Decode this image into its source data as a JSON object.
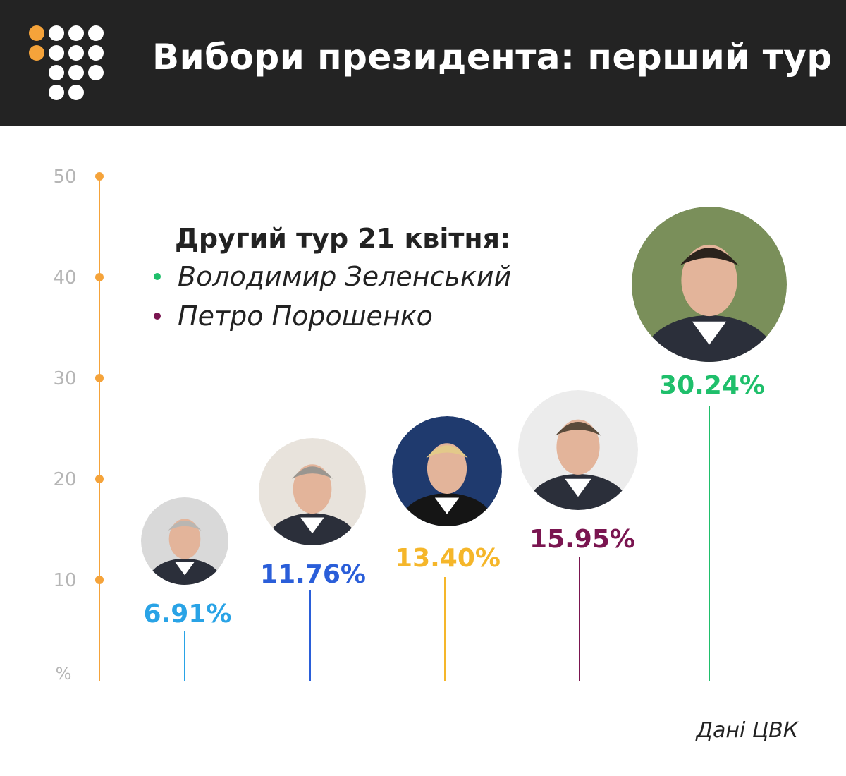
{
  "header": {
    "title": "Вибори президента: перший тур",
    "logo_icon": "dots-logo-icon"
  },
  "legend": {
    "title": "Другий тур 21 квітня:",
    "items": [
      {
        "name": "Володимир Зеленський",
        "color": "#1fbf6b"
      },
      {
        "name": "Петро Порошенко",
        "color": "#7a1550"
      }
    ]
  },
  "source": "Дані ЦВК",
  "chart_data": {
    "type": "lollipop",
    "y_unit_label": "%",
    "yticks": [
      10,
      20,
      30,
      40,
      50
    ],
    "ylim": [
      0,
      50
    ],
    "axis_color": "#f5a33a",
    "candidates": [
      {
        "value": 6.91,
        "label": "6.91%",
        "color": "#29a3e6",
        "photo": "candidate-1-portrait"
      },
      {
        "value": 11.76,
        "label": "11.76%",
        "color": "#2a5ed9",
        "photo": "candidate-2-portrait"
      },
      {
        "value": 13.4,
        "label": "13.40%",
        "color": "#f5b62a",
        "photo": "candidate-3-portrait"
      },
      {
        "value": 15.95,
        "label": "15.95%",
        "color": "#7a1550",
        "photo": "candidate-4-portrait"
      },
      {
        "value": 30.24,
        "label": "30.24%",
        "color": "#1fbf6b",
        "photo": "candidate-5-portrait"
      }
    ]
  }
}
